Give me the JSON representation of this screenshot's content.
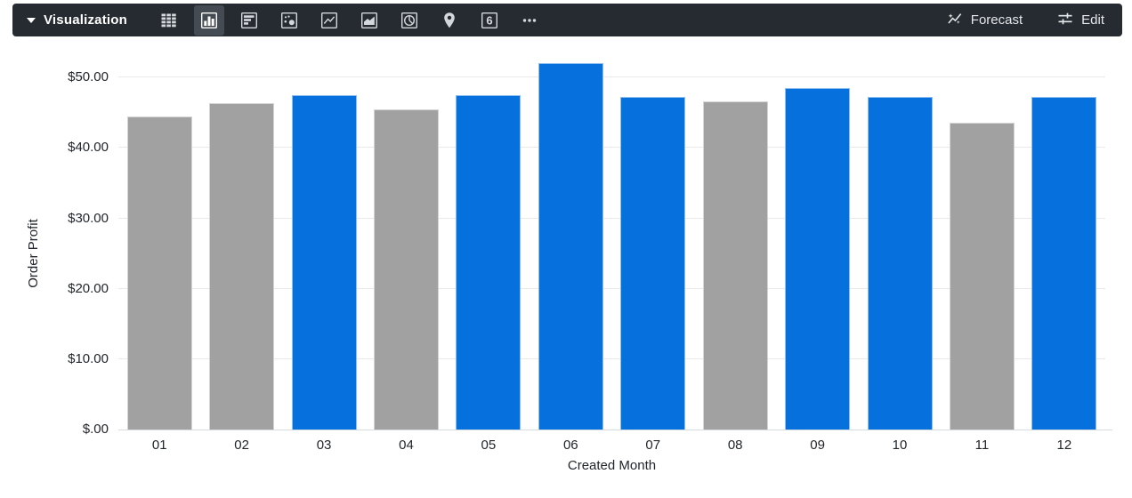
{
  "toolbar": {
    "title": "Visualization",
    "selected_viz": "column",
    "viz_types": [
      {
        "name": "table",
        "selected": false
      },
      {
        "name": "column",
        "selected": true
      },
      {
        "name": "bar",
        "selected": false
      },
      {
        "name": "scatter",
        "selected": false
      },
      {
        "name": "line",
        "selected": false
      },
      {
        "name": "area",
        "selected": false
      },
      {
        "name": "pie",
        "selected": false
      },
      {
        "name": "map",
        "selected": false
      },
      {
        "name": "single-value",
        "selected": false
      },
      {
        "name": "more",
        "selected": false
      }
    ],
    "single_value_glyph": "6",
    "forecast_label": "Forecast",
    "edit_label": "Edit"
  },
  "chart_data": {
    "type": "bar",
    "title": "",
    "xlabel": "Created Month",
    "ylabel": "Order Profit",
    "categories": [
      "01",
      "02",
      "03",
      "04",
      "05",
      "06",
      "07",
      "08",
      "09",
      "10",
      "11",
      "12"
    ],
    "values": [
      44.5,
      46.4,
      47.5,
      45.5,
      47.5,
      52.0,
      47.2,
      46.6,
      48.5,
      47.2,
      43.6,
      47.2
    ],
    "bar_colors": [
      "#a1a1a1",
      "#a1a1a1",
      "#0670dc",
      "#a1a1a1",
      "#0670dc",
      "#0670dc",
      "#0670dc",
      "#a1a1a1",
      "#0670dc",
      "#0670dc",
      "#a1a1a1",
      "#0670dc"
    ],
    "y_ticks": [
      {
        "value": 0,
        "label": "$.00"
      },
      {
        "value": 10,
        "label": "$10.00"
      },
      {
        "value": 20,
        "label": "$20.00"
      },
      {
        "value": 30,
        "label": "$30.00"
      },
      {
        "value": 40,
        "label": "$40.00"
      },
      {
        "value": 50,
        "label": "$50.00"
      }
    ],
    "ylim": [
      0,
      53.45
    ],
    "grid": true,
    "legend": "none",
    "palette": {
      "highlight": "#0670dc",
      "muted": "#a1a1a1"
    }
  }
}
